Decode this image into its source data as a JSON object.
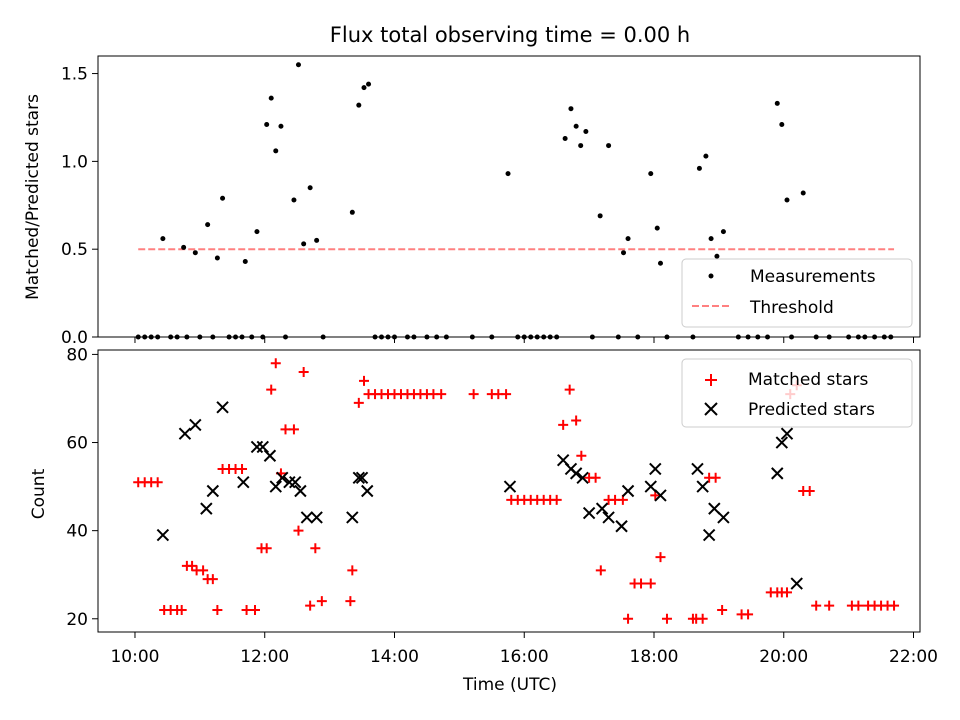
{
  "chart_data": [
    {
      "type": "scatter",
      "title": "Flux total observing time = 0.00 h",
      "xlabel": "",
      "ylabel": "Matched/Predicted stars",
      "xlim": [
        9.43,
        22.1
      ],
      "ylim": [
        0,
        1.6
      ],
      "yticks": [
        0,
        0.5,
        1.0,
        1.5
      ],
      "ytick_labels": [
        "0.0",
        "0.5",
        "1.0",
        "1.5"
      ],
      "xticks": [
        10,
        12,
        14,
        16,
        18,
        20,
        22
      ],
      "grid": false,
      "legend_position": "lower right",
      "series": [
        {
          "name": "Measurements",
          "kind": "points",
          "color": "#000000",
          "x": [
            10.05,
            10.15,
            10.25,
            10.35,
            10.43,
            10.55,
            10.65,
            10.75,
            10.8,
            10.93,
            11.0,
            11.12,
            11.2,
            11.27,
            11.35,
            11.45,
            11.55,
            11.65,
            11.7,
            11.8,
            11.88,
            11.97,
            12.03,
            12.1,
            12.17,
            12.25,
            12.32,
            12.45,
            12.52,
            12.6,
            12.7,
            12.8,
            12.9,
            13.35,
            13.45,
            13.53,
            13.6,
            13.7,
            13.8,
            13.9,
            14.0,
            14.2,
            14.3,
            14.5,
            14.65,
            14.8,
            15.2,
            15.5,
            15.75,
            15.9,
            16.0,
            16.1,
            16.2,
            16.3,
            16.4,
            16.5,
            16.63,
            16.72,
            16.8,
            16.87,
            16.95,
            17.05,
            17.17,
            17.3,
            17.45,
            17.53,
            17.6,
            17.75,
            17.95,
            18.05,
            18.1,
            18.2,
            18.6,
            18.7,
            18.8,
            18.88,
            18.97,
            19.07,
            19.3,
            19.45,
            19.6,
            19.75,
            19.9,
            19.97,
            20.05,
            20.12,
            20.3,
            20.5,
            20.7,
            21.0,
            21.15,
            21.25,
            21.4,
            21.55,
            21.65
          ],
          "y": [
            0,
            0,
            0,
            0,
            0.56,
            0,
            0,
            0.51,
            0,
            0.48,
            0,
            0.64,
            0,
            0.45,
            0.79,
            0,
            0,
            0,
            0.43,
            0,
            0.6,
            0,
            1.21,
            1.36,
            1.06,
            1.2,
            0,
            0.78,
            1.55,
            0.53,
            0.85,
            0.55,
            0,
            0.71,
            1.32,
            1.42,
            1.44,
            0,
            0,
            0,
            0,
            0,
            0,
            0,
            0,
            0,
            0,
            0,
            0.93,
            0,
            0,
            0,
            0,
            0,
            0,
            0,
            1.13,
            1.3,
            1.2,
            1.09,
            1.17,
            0,
            0.69,
            1.09,
            0,
            0.48,
            0.56,
            0,
            0.93,
            0.62,
            0.42,
            0,
            0,
            0.96,
            1.03,
            0.56,
            0.46,
            0.6,
            0,
            0,
            0,
            0,
            1.33,
            1.21,
            0.78,
            0,
            0.82,
            0,
            0,
            0,
            0,
            0,
            0,
            0,
            0
          ]
        },
        {
          "name": "Threshold",
          "kind": "dashed-line",
          "color": "#ff8080",
          "x": [
            10.05,
            21.7
          ],
          "y": [
            0.5,
            0.5
          ]
        }
      ]
    },
    {
      "type": "scatter",
      "title": "",
      "xlabel": "Time (UTC)",
      "ylabel": "Count",
      "xlim": [
        9.43,
        22.1
      ],
      "ylim": [
        17,
        81
      ],
      "yticks": [
        20,
        40,
        60,
        80
      ],
      "ytick_labels": [
        "20",
        "40",
        "60",
        "80"
      ],
      "xticks": [
        10,
        12,
        14,
        16,
        18,
        20,
        22
      ],
      "xtick_labels": [
        "10:00",
        "12:00",
        "14:00",
        "16:00",
        "18:00",
        "20:00",
        "22:00"
      ],
      "grid": false,
      "legend_position": "upper right",
      "series": [
        {
          "name": "Matched stars",
          "marker": "plus",
          "color": "#ff0000",
          "x": [
            10.05,
            10.15,
            10.25,
            10.35,
            10.45,
            10.55,
            10.65,
            10.72,
            10.8,
            10.88,
            10.95,
            11.05,
            11.12,
            11.2,
            11.27,
            11.35,
            11.45,
            11.55,
            11.65,
            11.72,
            11.85,
            11.95,
            12.03,
            12.1,
            12.17,
            12.25,
            12.32,
            12.45,
            12.52,
            12.6,
            12.7,
            12.78,
            12.88,
            13.32,
            13.35,
            13.45,
            13.53,
            13.6,
            13.7,
            13.8,
            13.9,
            14.0,
            14.1,
            14.2,
            14.3,
            14.4,
            14.5,
            14.6,
            14.72,
            15.22,
            15.5,
            15.6,
            15.72,
            15.8,
            15.9,
            16.0,
            16.1,
            16.2,
            16.3,
            16.4,
            16.5,
            16.6,
            16.7,
            16.8,
            16.88,
            17.0,
            17.1,
            17.18,
            17.3,
            17.4,
            17.52,
            17.6,
            17.7,
            17.8,
            17.95,
            18.02,
            18.1,
            18.2,
            18.6,
            18.65,
            18.75,
            18.85,
            18.95,
            19.05,
            19.35,
            19.45,
            19.8,
            19.9,
            19.97,
            20.05,
            20.1,
            20.2,
            20.3,
            20.4,
            20.5,
            20.7,
            21.05,
            21.15,
            21.3,
            21.4,
            21.5,
            21.6,
            21.7
          ],
          "y": [
            51,
            51,
            51,
            51,
            22,
            22,
            22,
            22,
            32,
            32,
            31,
            31,
            29,
            29,
            22,
            54,
            54,
            54,
            54,
            22,
            22,
            36,
            36,
            72,
            78,
            53,
            63,
            63,
            40,
            76,
            23,
            36,
            24,
            24,
            31,
            69,
            74,
            71,
            71,
            71,
            71,
            71,
            71,
            71,
            71,
            71,
            71,
            71,
            71,
            71,
            71,
            71,
            71,
            47,
            47,
            47,
            47,
            47,
            47,
            47,
            47,
            64,
            72,
            65,
            57,
            52,
            52,
            31,
            47,
            47,
            47,
            20,
            28,
            28,
            28,
            48,
            34,
            20,
            20,
            20,
            20,
            52,
            52,
            22,
            21,
            21,
            26,
            26,
            26,
            26,
            71,
            73,
            49,
            49,
            23,
            23,
            23,
            23,
            23,
            23,
            23,
            23,
            23
          ]
        },
        {
          "name": "Predicted stars",
          "marker": "x",
          "color": "#000000",
          "x": [
            10.43,
            10.77,
            10.93,
            11.1,
            11.2,
            11.35,
            11.67,
            11.88,
            11.97,
            12.08,
            12.17,
            12.27,
            12.38,
            12.47,
            12.55,
            12.65,
            12.8,
            13.35,
            13.45,
            13.5,
            13.58,
            15.78,
            16.6,
            16.72,
            16.8,
            16.9,
            17.0,
            17.2,
            17.3,
            17.5,
            17.6,
            17.95,
            18.02,
            18.1,
            18.67,
            18.75,
            18.85,
            18.93,
            19.07,
            19.9,
            19.97,
            20.05,
            20.2
          ],
          "y": [
            39,
            62,
            64,
            45,
            49,
            68,
            51,
            59,
            59,
            57,
            50,
            52,
            51,
            51,
            49,
            43,
            43,
            43,
            52,
            52,
            49,
            50,
            56,
            54,
            53,
            52,
            44,
            45,
            43,
            41,
            49,
            50,
            54,
            48,
            54,
            50,
            39,
            45,
            43,
            53,
            60,
            62,
            28
          ]
        }
      ]
    }
  ]
}
